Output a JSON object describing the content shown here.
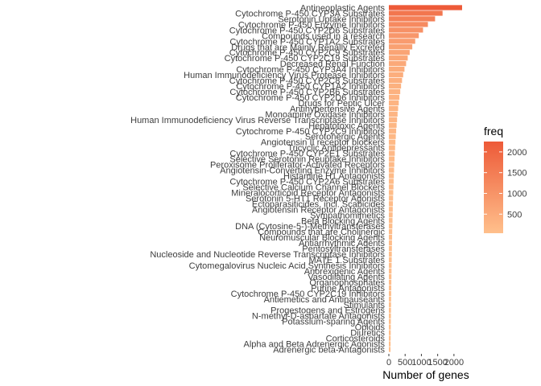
{
  "chart_data": {
    "type": "bar",
    "orientation": "horizontal",
    "xlabel": "Number of genes",
    "ylabel": "",
    "xlim": [
      0,
      2300
    ],
    "x_ticks": [
      0,
      500,
      1000,
      1500,
      2000
    ],
    "x_tick_labels": [
      "0",
      "500",
      "1000",
      "1500",
      "2000"
    ],
    "grid": false,
    "legend": {
      "title": "freq",
      "placement": "right",
      "type": "colorbar",
      "ticks": [
        500,
        1000,
        1500,
        2000
      ],
      "tick_labels": [
        "500",
        "1000",
        "1500",
        "2000"
      ],
      "range": [
        40,
        2250
      ],
      "color_low": "#ffc08c",
      "color_high": "#ed5a38"
    },
    "categories": [
      "Antineoplastic Agents",
      "Cytochrome P-450 CYP3A Substrates",
      "Serotonin Uptake Inhibitors",
      "Cytochrome P-450 Enzyme Inhibitors",
      "Cytochrome P-450 CYP2D6 Substrates",
      "Compounds used in a research",
      "Cytochrome P-450 CYP1A2 Substrates",
      "Drugs that are Mainly Renally Excreted",
      "Cytochrome P-450 CYP2C9 Substrates",
      "Cytochrome P-450 CYP2C19 Substrates",
      "Decreased Renal Function",
      "Cytochrome P-450 CYP3A4 Inhibitors",
      "Human Immunodeficiency Virus Protease Inhibitors",
      "Cytochrome P-450 CYP2C8 Substrates",
      "Cytochrome P-450 CYP1A2 Inhibitors",
      "Cytochrome P-450 CYP2B6 Substrates",
      "Cytochrome P-450 CYP2D6 Inhibitors",
      "Drugs for Peptic Ulcer",
      "Antihypertensive Agents",
      "Monoamine Oxidase Inhibitors",
      "Human Immunodeficiency Virus Reverse Transcriptase Inhibitors",
      "Hepatotoxic Agents",
      "Cytochrome P-450 CYP2C9 Inhibitors",
      "Serotonergic Agents",
      "Angiotensin II receptor blockers",
      "Tricyclic Antidepressants",
      "Cytochrome P-450 CYP2E1 Substrates",
      "Selective Serotonin Reuptake Inhibitors",
      "Peroxisome Proliferator-Activated Receptors",
      "Angiotensin-Converting Enzyme Inhibitors",
      "Histamine H1 Antagonists",
      "Cytochrome P-450 CYP2A6 Substrates",
      "Selective Calcium Channel Blockers",
      "Mineralocorticoid Receptor Antagonists",
      "Serotonin 5-HT1 Receptor Agonists",
      "Ectoparasiticides, incl. Scabicides",
      "Angiotensin Receptor Antagonists",
      "Sympathomimetics",
      "Beta Blocking Agents",
      "DNA (Cytosine-5-)-Methyltransferases",
      "Compounds that are Cholinergic",
      "Neuromuscular Blocking Agents",
      "Antiarrhythmic Agents",
      "Pentosyltransferases",
      "Nucleoside and Nucleotide Reverse Transcriptase Inhibitors",
      "MATE 1 Substrates",
      "Cytomegalovirus Nucleic Acid Synthesis Inhibitors",
      "Anorexigenic Agents",
      "Vasodilating Agents",
      "Organophosphates",
      "Purine Antagonists",
      "Cytochrome P-450 CYP2C19 Inhibitors",
      "Antiemetics and Antinauseants",
      "Stimulants",
      "Progestogens and Estrogens",
      "N-methyl-D-aspartate Antagonists",
      "Potassium-sparing Agents",
      "Opioids",
      "Diuretics",
      "Corticosteroids",
      "Alpha and Beta Adrenergic Agonists",
      "Adrenergic beta-Antagonists"
    ],
    "values": [
      2250,
      1650,
      1420,
      1200,
      1050,
      920,
      810,
      720,
      640,
      580,
      530,
      480,
      440,
      405,
      375,
      350,
      325,
      305,
      285,
      268,
      252,
      238,
      225,
      213,
      202,
      192,
      183,
      175,
      167,
      160,
      153,
      147,
      141,
      135,
      130,
      125,
      120,
      116,
      112,
      108,
      104,
      100,
      97,
      94,
      91,
      88,
      85,
      82,
      80,
      77,
      75,
      72,
      70,
      68,
      66,
      64,
      62,
      60,
      58,
      56,
      54,
      52
    ]
  }
}
